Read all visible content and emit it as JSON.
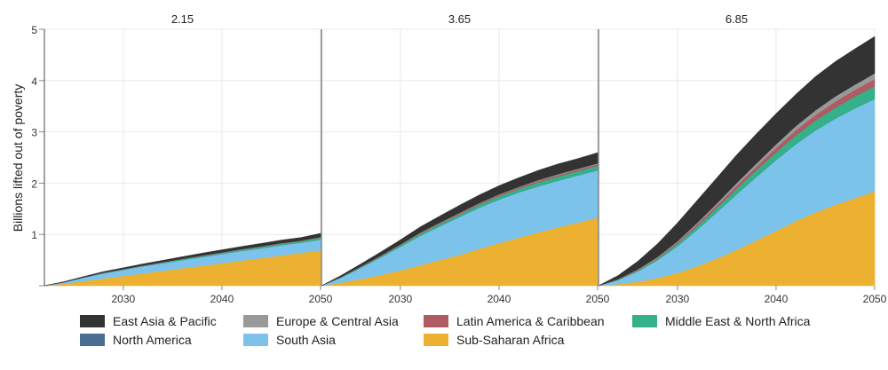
{
  "chart_data": {
    "type": "area",
    "stacked": true,
    "ylabel": "Billions lifted out of poverty",
    "xlabel": "",
    "ylim": [
      0,
      5
    ],
    "yticks": [
      0,
      1,
      2,
      3,
      4,
      5
    ],
    "ytick_labels": [
      "",
      "1",
      "2",
      "3",
      "4",
      "5"
    ],
    "xlim": [
      2022,
      2050
    ],
    "xticks": [
      2030,
      2040,
      2050
    ],
    "grid": true,
    "legend_position": "bottom",
    "x": [
      2022,
      2024,
      2026,
      2028,
      2030,
      2032,
      2034,
      2036,
      2038,
      2040,
      2042,
      2044,
      2046,
      2048,
      2050
    ],
    "series_order": [
      "Sub-Saharan Africa",
      "South Asia",
      "North America",
      "Middle East & North Africa",
      "Latin America & Caribbean",
      "Europe & Central Asia",
      "East Asia & Pacific"
    ],
    "legend": [
      {
        "name": "East Asia & Pacific",
        "color": "#333333"
      },
      {
        "name": "Europe & Central Asia",
        "color": "#999999"
      },
      {
        "name": "Latin America & Caribbean",
        "color": "#b05a62"
      },
      {
        "name": "Middle East & North Africa",
        "color": "#34b08a"
      },
      {
        "name": "North America",
        "color": "#4a6d93"
      },
      {
        "name": "South Asia",
        "color": "#7cc3ec"
      },
      {
        "name": "Sub-Saharan Africa",
        "color": "#ecb131"
      }
    ],
    "panels": [
      {
        "title": "2.15",
        "series": [
          {
            "name": "Sub-Saharan Africa",
            "values": [
              0,
              0.04,
              0.09,
              0.14,
              0.19,
              0.24,
              0.29,
              0.34,
              0.39,
              0.44,
              0.49,
              0.54,
              0.59,
              0.64,
              0.69
            ]
          },
          {
            "name": "South Asia",
            "values": [
              0,
              0.03,
              0.07,
              0.1,
              0.12,
              0.14,
              0.15,
              0.16,
              0.17,
              0.18,
              0.19,
              0.19,
              0.2,
              0.2,
              0.21
            ]
          },
          {
            "name": "North America",
            "values": [
              0,
              0,
              0,
              0,
              0,
              0,
              0,
              0,
              0,
              0,
              0,
              0,
              0,
              0,
              0
            ]
          },
          {
            "name": "Middle East & North Africa",
            "values": [
              0,
              0,
              0.005,
              0.01,
              0.01,
              0.01,
              0.015,
              0.02,
              0.02,
              0.02,
              0.025,
              0.03,
              0.03,
              0.03,
              0.04
            ]
          },
          {
            "name": "Latin America & Caribbean",
            "values": [
              0,
              0,
              0,
              0.005,
              0.005,
              0.005,
              0.005,
              0.005,
              0.01,
              0.01,
              0.01,
              0.01,
              0.01,
              0.01,
              0.01
            ]
          },
          {
            "name": "Europe & Central Asia",
            "values": [
              0,
              0,
              0,
              0,
              0,
              0,
              0,
              0,
              0,
              0,
              0,
              0,
              0,
              0,
              0
            ]
          },
          {
            "name": "East Asia & Pacific",
            "values": [
              0,
              0.01,
              0.015,
              0.02,
              0.025,
              0.03,
              0.035,
              0.04,
              0.045,
              0.05,
              0.05,
              0.055,
              0.06,
              0.06,
              0.07
            ]
          }
        ]
      },
      {
        "title": "3.65",
        "series": [
          {
            "name": "Sub-Saharan Africa",
            "values": [
              0,
              0.06,
              0.13,
              0.21,
              0.3,
              0.4,
              0.5,
              0.6,
              0.72,
              0.83,
              0.94,
              1.04,
              1.14,
              1.23,
              1.33
            ]
          },
          {
            "name": "South Asia",
            "values": [
              0,
              0.1,
              0.22,
              0.34,
              0.46,
              0.57,
              0.66,
              0.74,
              0.8,
              0.85,
              0.88,
              0.9,
              0.91,
              0.92,
              0.92
            ]
          },
          {
            "name": "North America",
            "values": [
              0,
              0,
              0,
              0,
              0,
              0,
              0,
              0,
              0,
              0,
              0,
              0,
              0,
              0,
              0
            ]
          },
          {
            "name": "Middle East & North Africa",
            "values": [
              0,
              0.01,
              0.015,
              0.02,
              0.03,
              0.04,
              0.045,
              0.05,
              0.06,
              0.065,
              0.07,
              0.075,
              0.08,
              0.085,
              0.09
            ]
          },
          {
            "name": "Latin America & Caribbean",
            "values": [
              0,
              0,
              0.005,
              0.01,
              0.01,
              0.015,
              0.015,
              0.02,
              0.02,
              0.025,
              0.025,
              0.03,
              0.03,
              0.03,
              0.03
            ]
          },
          {
            "name": "Europe & Central Asia",
            "values": [
              0,
              0,
              0.005,
              0.005,
              0.005,
              0.01,
              0.01,
              0.01,
              0.01,
              0.01,
              0.01,
              0.015,
              0.015,
              0.015,
              0.015
            ]
          },
          {
            "name": "East Asia & Pacific",
            "values": [
              0,
              0.03,
              0.05,
              0.07,
              0.09,
              0.11,
              0.13,
              0.15,
              0.16,
              0.17,
              0.18,
              0.19,
              0.2,
              0.2,
              0.21
            ]
          }
        ]
      },
      {
        "title": "6.85",
        "series": [
          {
            "name": "Sub-Saharan Africa",
            "values": [
              0,
              0.03,
              0.08,
              0.15,
              0.25,
              0.38,
              0.53,
              0.7,
              0.88,
              1.07,
              1.26,
              1.43,
              1.58,
              1.71,
              1.84
            ]
          },
          {
            "name": "South Asia",
            "values": [
              0,
              0.08,
              0.2,
              0.35,
              0.52,
              0.71,
              0.9,
              1.08,
              1.24,
              1.38,
              1.5,
              1.6,
              1.68,
              1.75,
              1.8
            ]
          },
          {
            "name": "North America",
            "values": [
              0,
              0,
              0,
              0,
              0,
              0,
              0,
              0,
              0,
              0,
              0,
              0,
              0,
              0,
              0
            ]
          },
          {
            "name": "Middle East & North Africa",
            "values": [
              0,
              0.01,
              0.02,
              0.03,
              0.05,
              0.07,
              0.09,
              0.11,
              0.13,
              0.15,
              0.17,
              0.19,
              0.21,
              0.23,
              0.25
            ]
          },
          {
            "name": "Latin America & Caribbean",
            "values": [
              0,
              0.005,
              0.01,
              0.015,
              0.025,
              0.035,
              0.045,
              0.06,
              0.07,
              0.085,
              0.1,
              0.11,
              0.12,
              0.13,
              0.14
            ]
          },
          {
            "name": "Europe & Central Asia",
            "values": [
              0,
              0.005,
              0.01,
              0.015,
              0.02,
              0.03,
              0.04,
              0.05,
              0.06,
              0.07,
              0.08,
              0.09,
              0.1,
              0.1,
              0.11
            ]
          },
          {
            "name": "East Asia & Pacific",
            "values": [
              0,
              0.07,
              0.16,
              0.26,
              0.36,
              0.44,
              0.5,
              0.55,
              0.58,
              0.6,
              0.62,
              0.66,
              0.68,
              0.7,
              0.72
            ]
          }
        ]
      }
    ]
  }
}
